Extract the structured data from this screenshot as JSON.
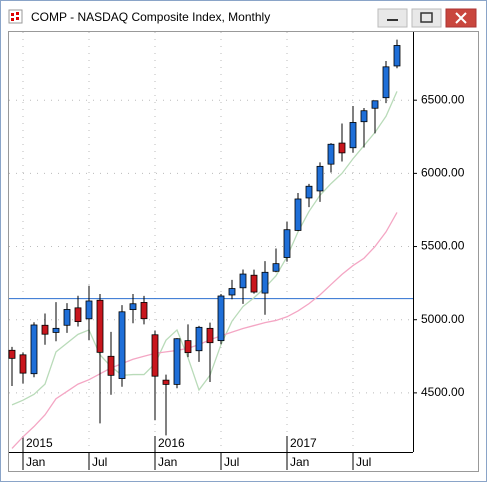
{
  "window": {
    "title": "COMP - NASDAQ Composite Index, Monthly"
  },
  "chart_data": {
    "type": "candlestick",
    "categories": [
      null,
      "Jan",
      null,
      null,
      null,
      null,
      null,
      "Jul",
      null,
      null,
      null,
      null,
      null,
      "Jan",
      null,
      null,
      null,
      null,
      null,
      "Jul",
      null,
      null,
      null,
      null,
      null,
      "Jan",
      null,
      null,
      null,
      null,
      null,
      "Jul",
      null,
      null,
      null,
      null
    ],
    "years": [
      "2015",
      "2016",
      "2017"
    ],
    "open": [
      4791,
      4760,
      4631,
      4962,
      4913,
      4962,
      5081,
      5006,
      5133,
      4750,
      4598,
      5069,
      5118,
      4897,
      4587,
      4558,
      4857,
      4788,
      4941,
      4857,
      5169,
      5218,
      5304,
      5182,
      5331,
      5425,
      5610,
      5832,
      5880,
      6063,
      6207,
      6175,
      6353,
      6445,
      6517,
      6734
    ],
    "high": [
      4814,
      4777,
      4983,
      5042,
      5120,
      5113,
      5164,
      5232,
      5176,
      4917,
      5100,
      5176,
      5163,
      4926,
      4625,
      4874,
      4968,
      4958,
      4980,
      5176,
      5272,
      5343,
      5342,
      5400,
      5487,
      5669,
      5866,
      5928,
      6075,
      6207,
      6341,
      6460,
      6447,
      6495,
      6768,
      6914
    ],
    "low": [
      4547,
      4563,
      4607,
      4829,
      4853,
      4910,
      4954,
      4861,
      4292,
      4487,
      4542,
      4976,
      4968,
      4313,
      4210,
      4532,
      4744,
      4712,
      4574,
      4832,
      5140,
      5108,
      5178,
      5034,
      5324,
      5397,
      5605,
      5769,
      5805,
      6006,
      6081,
      6141,
      6177,
      6273,
      6480,
      6718
    ],
    "close": [
      4736,
      4635,
      4964,
      4901,
      4941,
      5070,
      4987,
      5128,
      4777,
      4620,
      5054,
      5109,
      5007,
      4614,
      4558,
      4870,
      4775,
      4948,
      4843,
      5162,
      5213,
      5312,
      5189,
      5324,
      5383,
      5615,
      5825,
      5912,
      6048,
      6199,
      6140,
      6348,
      6428,
      6496,
      6728,
      6874
    ],
    "up_color": "#1f6fd8",
    "down_color": "#c8161d",
    "series": [
      {
        "color": "#b9dbb9",
        "values": [
          4418,
          4450,
          4490,
          4560,
          4780,
          4840,
          4900,
          4930,
          4760,
          4680,
          4620,
          4625,
          4625,
          4700,
          4860,
          4930,
          4740,
          4520,
          4620,
          4830,
          4990,
          5090,
          5150,
          5220,
          5300,
          5430,
          5600,
          5740,
          5850,
          5930,
          6000,
          6100,
          6190,
          6280,
          6390,
          6560
        ]
      },
      {
        "color": "#f4a6c4",
        "values": [
          4120,
          4200,
          4270,
          4350,
          4460,
          4510,
          4560,
          4590,
          4630,
          4670,
          4700,
          4730,
          4750,
          4770,
          4780,
          4790,
          4805,
          4830,
          4863,
          4890,
          4915,
          4940,
          4960,
          4980,
          4995,
          5020,
          5060,
          5110,
          5170,
          5240,
          5310,
          5370,
          5420,
          5500,
          5600,
          5733
        ]
      }
    ],
    "hline": {
      "value": 5144,
      "color": "#2b6fd0"
    },
    "ylim": [
      4096,
      6966
    ],
    "yticks": [
      {
        "value": 4500,
        "label": "4500.00"
      },
      {
        "value": 5000,
        "label": "5000.00"
      },
      {
        "value": 5500,
        "label": "5500.00"
      },
      {
        "value": 6000,
        "label": "6000.00"
      },
      {
        "value": 6500,
        "label": "6500.00"
      }
    ],
    "grid": true
  }
}
